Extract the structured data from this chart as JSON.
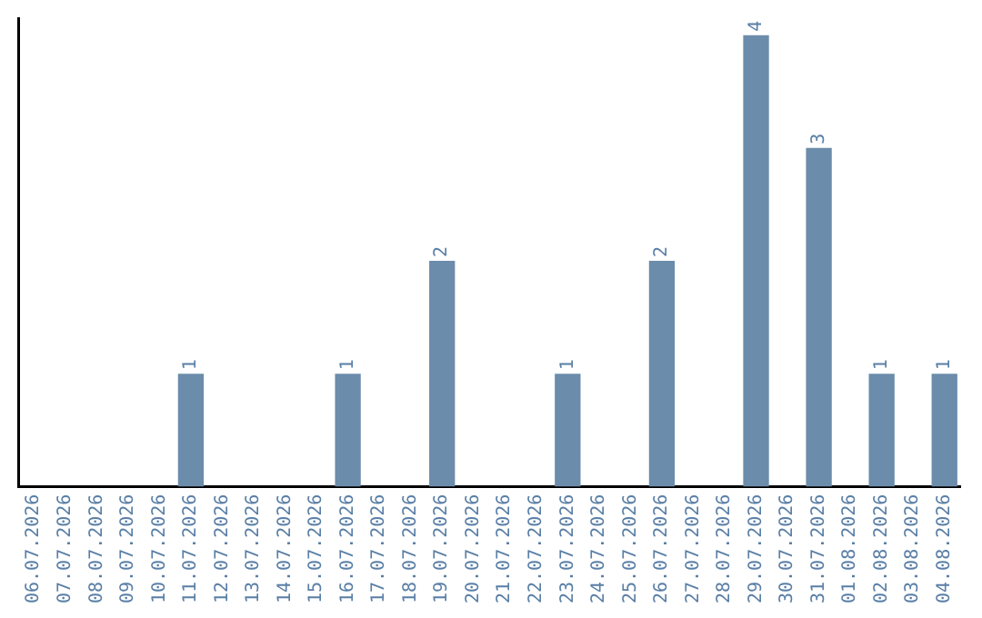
{
  "chart_data": {
    "type": "bar",
    "categories": [
      "06.07.2026",
      "07.07.2026",
      "08.07.2026",
      "09.07.2026",
      "10.07.2026",
      "11.07.2026",
      "12.07.2026",
      "13.07.2026",
      "14.07.2026",
      "15.07.2026",
      "16.07.2026",
      "17.07.2026",
      "18.07.2026",
      "19.07.2026",
      "20.07.2026",
      "21.07.2026",
      "22.07.2026",
      "23.07.2026",
      "24.07.2026",
      "25.07.2026",
      "26.07.2026",
      "27.07.2026",
      "28.07.2026",
      "29.07.2026",
      "30.07.2026",
      "31.07.2026",
      "01.08.2026",
      "02.08.2026",
      "03.08.2026",
      "04.08.2026"
    ],
    "values": [
      0,
      0,
      0,
      0,
      0,
      1,
      0,
      0,
      0,
      0,
      1,
      0,
      0,
      2,
      0,
      0,
      0,
      1,
      0,
      0,
      2,
      0,
      0,
      4,
      0,
      3,
      0,
      1,
      0,
      1
    ],
    "value_labels": [
      null,
      null,
      null,
      null,
      null,
      "1",
      null,
      null,
      null,
      null,
      "1",
      null,
      null,
      "2",
      null,
      null,
      null,
      "1",
      null,
      null,
      "2",
      null,
      null,
      "4",
      null,
      "3",
      null,
      "1",
      null,
      "1"
    ],
    "color": "#6b8cab",
    "ylim": [
      0,
      4.15
    ],
    "grid": false,
    "legend": false
  }
}
